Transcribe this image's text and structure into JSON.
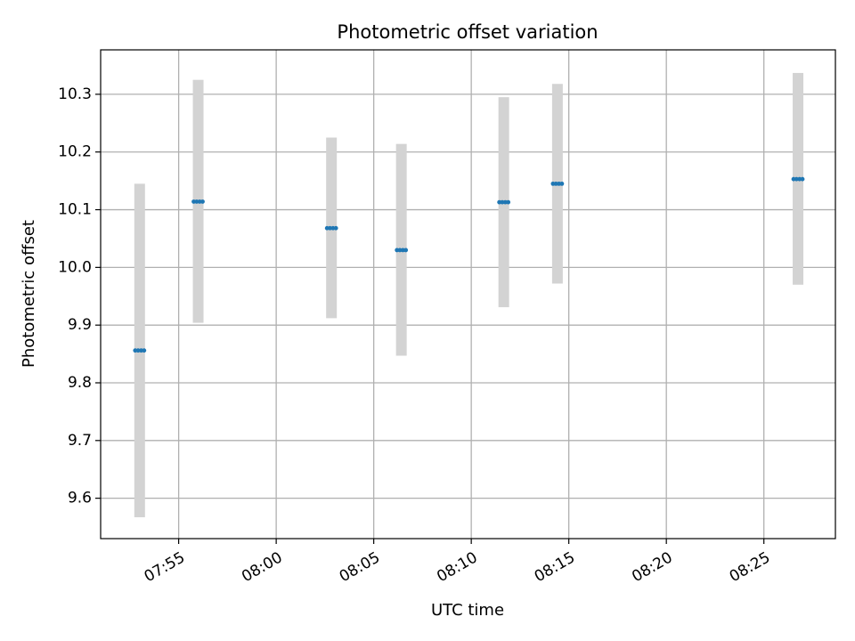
{
  "chart_data": {
    "type": "scatter",
    "title": "Photometric offset variation",
    "xlabel": "UTC time",
    "ylabel": "Photometric offset",
    "xlim": [
      "07:51:00",
      "08:28:40"
    ],
    "ylim": [
      9.53,
      10.377
    ],
    "grid": true,
    "x_ticks": [
      "07:55",
      "08:00",
      "08:05",
      "08:10",
      "08:15",
      "08:20",
      "08:25"
    ],
    "y_ticks": [
      9.6,
      9.7,
      9.8,
      9.9,
      10.0,
      10.1,
      10.2,
      10.3
    ],
    "points": [
      {
        "x": "07:53:00",
        "y": 9.856,
        "y_low": 9.567,
        "y_high": 10.145
      },
      {
        "x": "07:56:00",
        "y": 10.114,
        "y_low": 9.904,
        "y_high": 10.325
      },
      {
        "x": "08:02:50",
        "y": 10.068,
        "y_low": 9.912,
        "y_high": 10.225
      },
      {
        "x": "08:06:25",
        "y": 10.03,
        "y_low": 9.847,
        "y_high": 10.214
      },
      {
        "x": "08:11:40",
        "y": 10.113,
        "y_low": 9.931,
        "y_high": 10.295
      },
      {
        "x": "08:14:25",
        "y": 10.145,
        "y_low": 9.972,
        "y_high": 10.318
      },
      {
        "x": "08:26:45",
        "y": 10.153,
        "y_low": 9.97,
        "y_high": 10.337
      }
    ],
    "colors": {
      "point": "#1f77b4",
      "errorbar": "#d3d3d3",
      "grid": "#b0b0b0"
    }
  }
}
